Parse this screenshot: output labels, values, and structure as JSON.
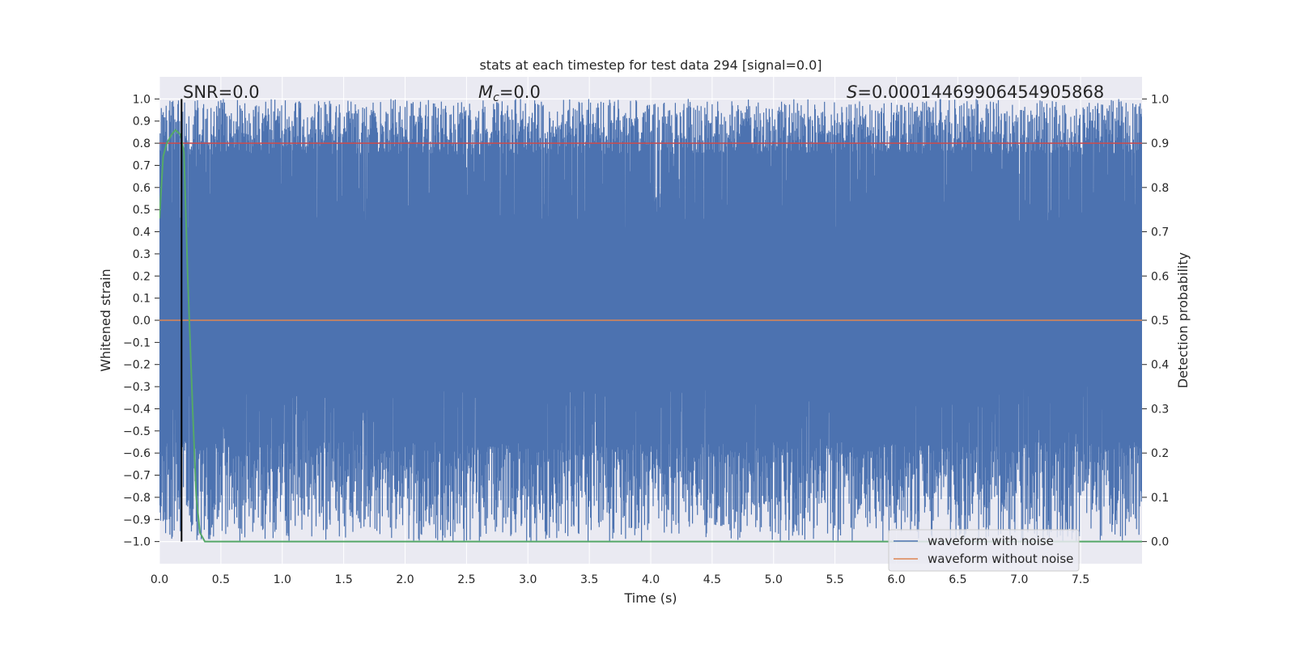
{
  "chart_data": {
    "type": "line",
    "title": "stats at each timestep for test data 294 [signal=0.0]",
    "xlabel": "Time (s)",
    "ylabel": "Whitened strain",
    "y2label": "Detection probability",
    "xlim": [
      0.0,
      8.0
    ],
    "ylim": [
      -1.1,
      1.1
    ],
    "y2lim": [
      -0.05,
      1.05
    ],
    "x_ticks": [
      "0.0",
      "0.5",
      "1.0",
      "1.5",
      "2.0",
      "2.5",
      "3.0",
      "3.5",
      "4.0",
      "4.5",
      "5.0",
      "5.5",
      "6.0",
      "6.5",
      "7.0",
      "7.5"
    ],
    "y_ticks": [
      "1.0",
      "0.9",
      "0.8",
      "0.7",
      "0.6",
      "0.5",
      "0.4",
      "0.3",
      "0.2",
      "0.1",
      "0.0",
      "−0.1",
      "−0.2",
      "−0.3",
      "−0.4",
      "−0.5",
      "−0.6",
      "−0.7",
      "−0.8",
      "−0.9",
      "−1.0"
    ],
    "y2_ticks": [
      "1.0",
      "0.9",
      "0.8",
      "0.7",
      "0.6",
      "0.5",
      "0.4",
      "0.3",
      "0.2",
      "0.1",
      "0.0"
    ],
    "grid": true,
    "legend_position": "lower-right",
    "annotations": {
      "snr": "SNR=0.0",
      "mc_symbol": "M",
      "mc_subscript": "c",
      "mc_value": "=0.0",
      "s_symbol": "S",
      "s_value": "=0.00014469906454905868"
    },
    "series": [
      {
        "name": "waveform with noise",
        "color": "#4c72b0",
        "style": "dense noise filling range -1.0 to 1.0 across 0–8 s"
      },
      {
        "name": "waveform without noise",
        "color": "#dd8452",
        "x": [
          0.0,
          8.0
        ],
        "y": [
          0.0,
          0.0
        ]
      },
      {
        "color": "#55a868",
        "axis": "right",
        "x": [
          0.0,
          0.03,
          0.06,
          0.1,
          0.13,
          0.17,
          0.2,
          0.23,
          0.27,
          0.3,
          0.33,
          0.37,
          1.0,
          2.0,
          4.0,
          6.0,
          8.0
        ],
        "y": [
          0.73,
          0.87,
          0.9,
          0.92,
          0.93,
          0.92,
          0.88,
          0.6,
          0.3,
          0.1,
          0.02,
          0.0,
          0.0,
          0.0,
          0.0,
          0.0,
          0.0
        ]
      },
      {
        "color": "#c44e52",
        "axis": "right",
        "x": [
          0.0,
          8.0
        ],
        "y": [
          0.9,
          0.9
        ]
      },
      {
        "color": "#000000",
        "type": "vline",
        "x": 0.18
      }
    ]
  }
}
